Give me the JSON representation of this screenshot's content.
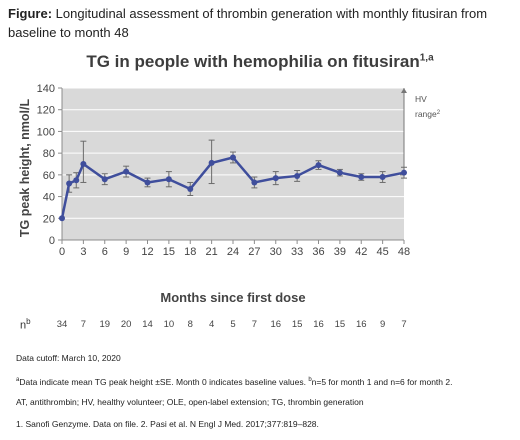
{
  "figure_caption": {
    "label": "Figure:",
    "text": " Longitudinal assessment of thrombin generation with monthly fitusiran from baseline to month 48"
  },
  "chart_data": {
    "type": "line",
    "title": "TG in people with hemophilia on fitusiran",
    "title_superscript": "1,a",
    "xlabel": "Months since first dose",
    "ylabel": "TG peak height, nmol/L",
    "xlim": [
      0,
      48
    ],
    "ylim": [
      0,
      140
    ],
    "x_ticks": [
      0,
      3,
      6,
      9,
      12,
      15,
      18,
      21,
      24,
      27,
      30,
      33,
      36,
      39,
      42,
      45,
      48
    ],
    "y_ticks": [
      0,
      20,
      40,
      60,
      80,
      100,
      120,
      140
    ],
    "grid": true,
    "hv_range_label": "HV range",
    "hv_range_superscript": "2",
    "hv_range": [
      60,
      140
    ],
    "series": [
      {
        "x": [
          0,
          1,
          2,
          3,
          6,
          9,
          12,
          15,
          18,
          21,
          24,
          27,
          30,
          33,
          36,
          39,
          42,
          45,
          48
        ],
        "values": [
          20,
          52,
          55,
          70,
          56,
          63,
          53,
          56,
          47,
          71,
          76,
          53,
          57,
          59,
          69,
          62,
          58,
          58,
          62
        ],
        "err_upper": [
          0,
          8,
          7,
          21,
          5,
          5,
          4,
          7,
          6,
          21,
          5,
          5,
          6,
          5,
          4,
          3,
          3,
          5,
          5
        ],
        "err_lower": [
          0,
          8,
          7,
          17,
          5,
          5,
          4,
          7,
          6,
          19,
          5,
          5,
          6,
          5,
          4,
          3,
          3,
          5,
          5
        ]
      }
    ],
    "n_label": "n",
    "n_superscript": "b",
    "n_values": [
      "34",
      "7",
      "19",
      "20",
      "14",
      "10",
      "8",
      "4",
      "5",
      "7",
      "16",
      "15",
      "16",
      "15",
      "16",
      "9",
      "7"
    ],
    "colors": {
      "line": "#3f4e9c",
      "error_bar": "#6b6b6b",
      "plot_bg": "#d9d9d9",
      "grid": "#ffffff",
      "axis": "#8c8c8c"
    }
  },
  "notes": {
    "cutoff": "Data cutoff: March 10, 2020",
    "note_a_marker": "a",
    "note_a_text_1": "Data indicate mean TG peak height ±SE. Month 0 indicates baseline values. ",
    "note_b_marker": "b",
    "note_a_text_2": "n=5 for month 1 and n=6 for month 2.",
    "abbreviations": "AT, antithrombin; HV, healthy volunteer; OLE, open-label extension; TG, thrombin generation",
    "references": "1. Sanofi Genzyme. Data on file. 2. Pasi et al. N Engl J Med. 2017;377:819–828."
  }
}
